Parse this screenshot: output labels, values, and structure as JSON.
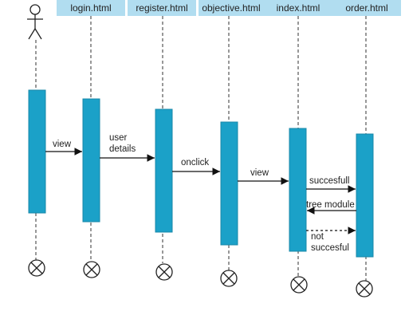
{
  "diagram": {
    "colors": {
      "header_fill": "#b1ddf0",
      "activation_fill": "#1ba1c8",
      "line": "#333333",
      "background": "#ffffff"
    },
    "actor_icon": "stick-figure-icon",
    "terminator_icon": "circle-x-icon",
    "lifelines": [
      {
        "label": "login.html"
      },
      {
        "label": "register.html"
      },
      {
        "label": "objective.html"
      },
      {
        "label": "index.html"
      },
      {
        "label": "order.html"
      }
    ],
    "messages": [
      {
        "line1": "view",
        "line2": "",
        "style": "solid",
        "direction": "right"
      },
      {
        "line1": "user",
        "line2": "details",
        "style": "solid",
        "direction": "right"
      },
      {
        "line1": "onclick",
        "line2": "",
        "style": "solid",
        "direction": "right"
      },
      {
        "line1": "view",
        "line2": "",
        "style": "solid",
        "direction": "right"
      },
      {
        "line1": "succesfull",
        "line2": "",
        "style": "solid",
        "direction": "right"
      },
      {
        "line1": "tree module",
        "line2": "",
        "style": "solid",
        "direction": "left"
      },
      {
        "line1": "not",
        "line2": "succesful",
        "style": "dashed",
        "direction": "right"
      }
    ]
  }
}
